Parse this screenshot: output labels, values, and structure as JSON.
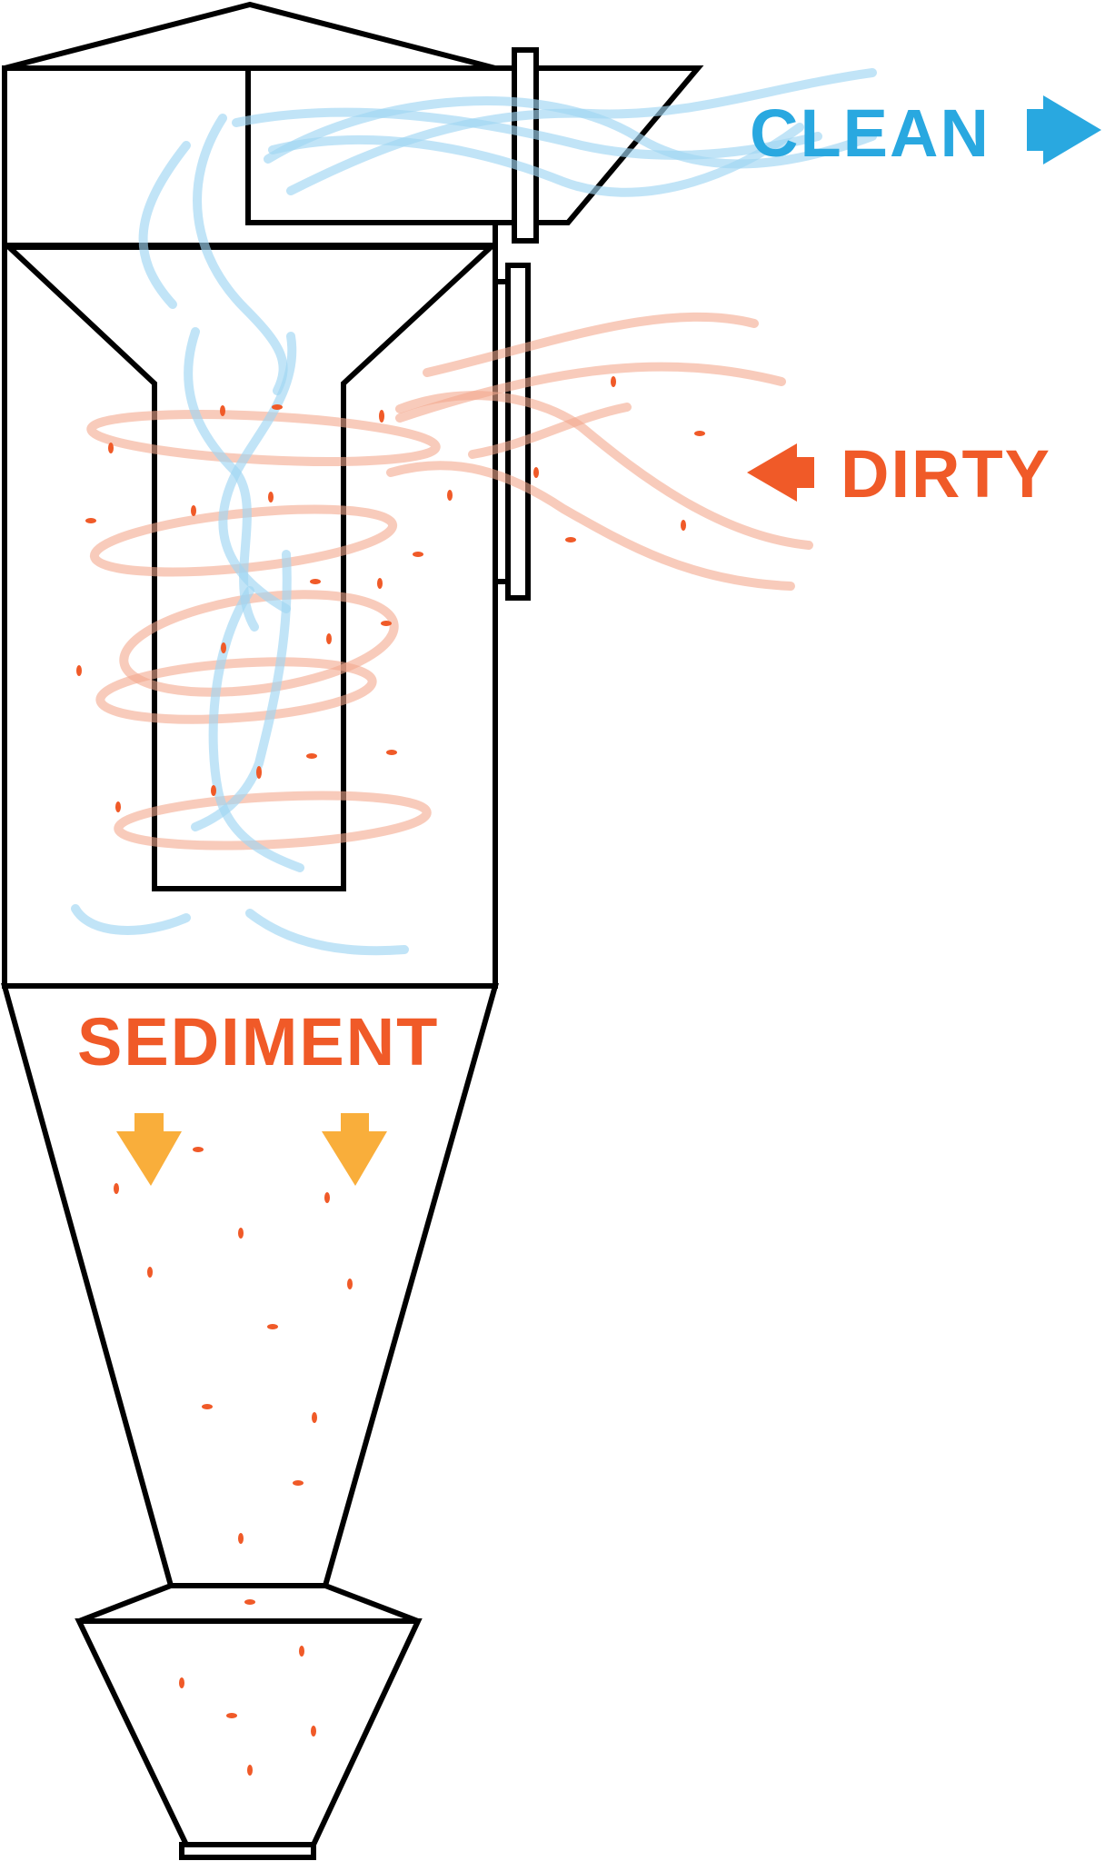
{
  "labels": {
    "clean": "CLEAN",
    "dirty": "DIRTY",
    "sediment": "SEDIMENT"
  },
  "colors": {
    "clean": "#29a8e0",
    "dirty": "#f05a28",
    "sediment_arrow": "#f9ae3b",
    "outline": "#000000"
  }
}
